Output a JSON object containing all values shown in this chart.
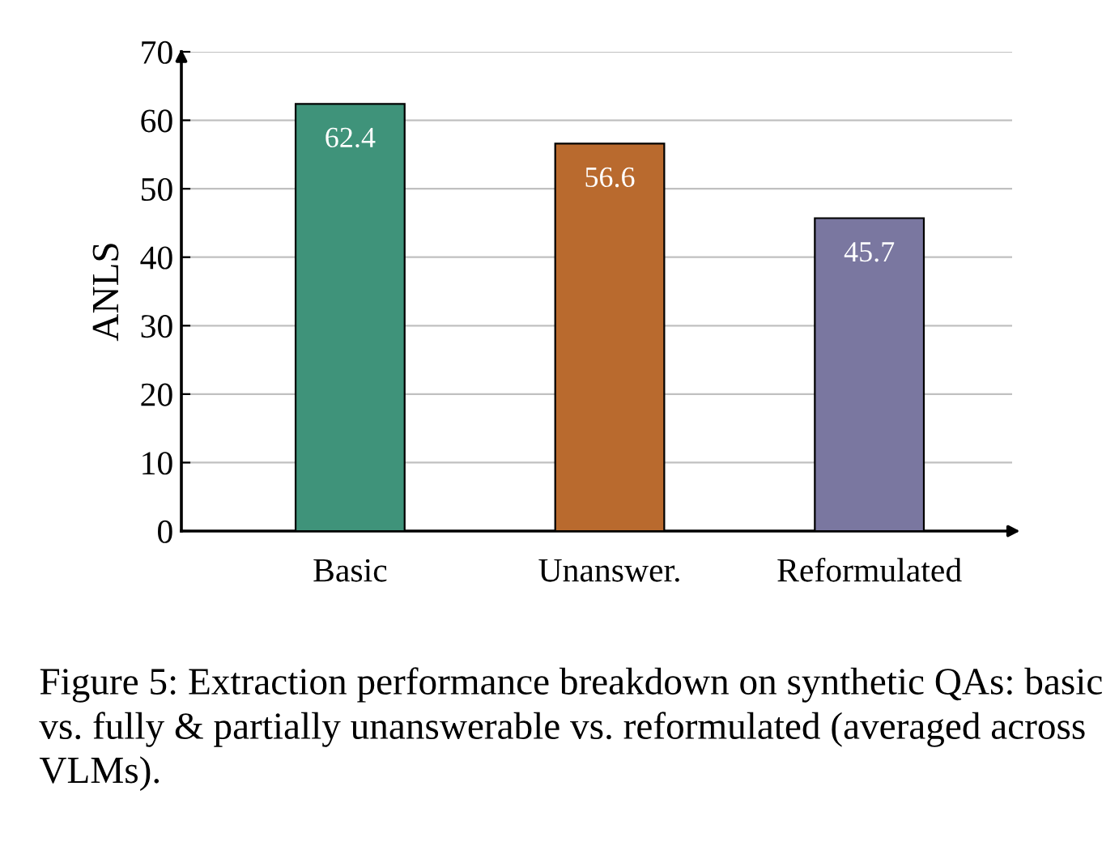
{
  "chart_data": {
    "type": "bar",
    "ylabel": "ANLS",
    "categories": [
      "Basic",
      "Unanswer.",
      "Reformulated"
    ],
    "values": [
      62.4,
      56.6,
      45.7
    ],
    "colors": [
      "#3f937a",
      "#b96a2e",
      "#7a77a0"
    ],
    "ylim": [
      0,
      70
    ],
    "yticks": [
      0,
      10,
      20,
      30,
      40,
      50,
      60,
      70
    ],
    "grid": "y",
    "data_labels": true,
    "annotations": [
      "Figure 5: Extraction performance breakdown on synthetic QAs: basic vs. fully & partially unanswerable vs. reformulated (averaged across VLMs)."
    ]
  }
}
